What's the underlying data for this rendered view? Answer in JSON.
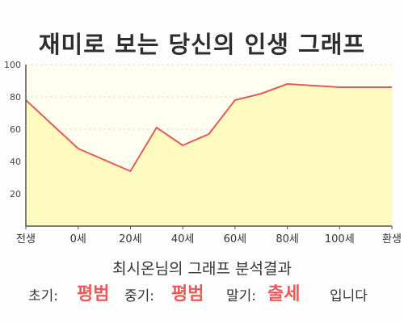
{
  "page": {
    "title": "재미로 보는 당신의 인생 그래프"
  },
  "chart_data": {
    "type": "area",
    "title": "",
    "xlabel": "",
    "ylabel": "",
    "x_tick_labels": [
      "전생",
      "0세",
      "20세",
      "40세",
      "60세",
      "80세",
      "100세",
      "환생"
    ],
    "y_ticks": [
      20,
      40,
      60,
      80,
      100
    ],
    "ylim": [
      0,
      100
    ],
    "grid": true,
    "line_color": "#e05c5c",
    "fill_color": "#fffbc0",
    "plot_background": "#fffff0",
    "series": [
      {
        "points": [
          {
            "x": "전생",
            "y": 78
          },
          {
            "x": "0세",
            "y": 48
          },
          {
            "x": "20세",
            "y": 34
          },
          {
            "x": "30세",
            "y": 61
          },
          {
            "x": "40세",
            "y": 50
          },
          {
            "x": "50세",
            "y": 57
          },
          {
            "x": "60세",
            "y": 78
          },
          {
            "x": "70세",
            "y": 82
          },
          {
            "x": "80세",
            "y": 88
          },
          {
            "x": "90세",
            "y": 87
          },
          {
            "x": "100세",
            "y": 86
          },
          {
            "x": "환생",
            "y": 86
          }
        ]
      }
    ]
  },
  "result": {
    "heading": "최시온님의 그래프 분석결과",
    "early_label": "초기:",
    "early_value": "평범",
    "middle_label": "중기:",
    "middle_value": "평범",
    "late_label": "말기:",
    "late_value": "출세",
    "suffix": "입니다"
  }
}
